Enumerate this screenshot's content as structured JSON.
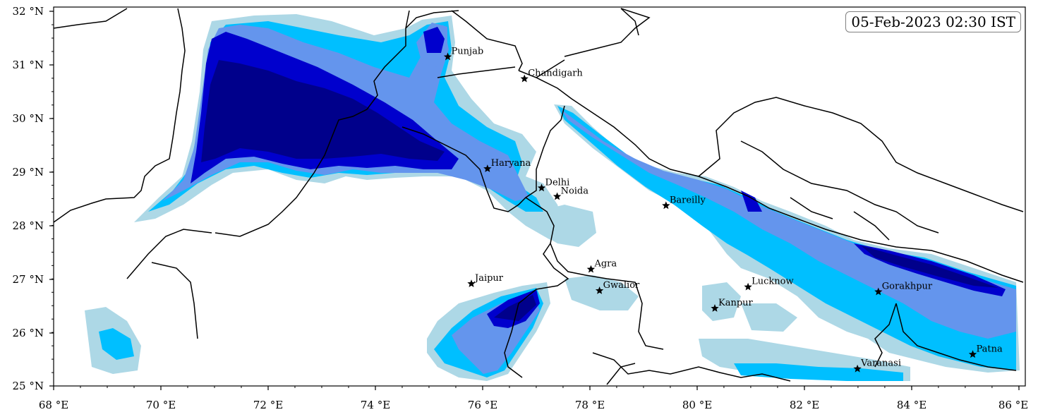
{
  "timestamp": "05-Feb-2023 02:30 IST",
  "lat_ticks": [
    "32 °N",
    "31 °N",
    "30 °N",
    "29 °N",
    "28 °N",
    "27 °N",
    "26 °N",
    "25 °N"
  ],
  "lon_ticks": [
    "68 °E",
    "70 °E",
    "72 °E",
    "74 °E",
    "76 °E",
    "78 °E",
    "80 °E",
    "82 °E",
    "84 °E",
    "86 °E"
  ],
  "cities": [
    {
      "name": "Punjab",
      "lon": 75.35,
      "lat": 31.15
    },
    {
      "name": "Chandigarh",
      "lon": 76.78,
      "lat": 30.74
    },
    {
      "name": "Haryana",
      "lon": 76.09,
      "lat": 29.06
    },
    {
      "name": "Delhi",
      "lon": 77.1,
      "lat": 28.7
    },
    {
      "name": "Noida",
      "lon": 77.39,
      "lat": 28.54
    },
    {
      "name": "Bareilly",
      "lon": 79.42,
      "lat": 28.37
    },
    {
      "name": "Agra",
      "lon": 78.02,
      "lat": 27.18
    },
    {
      "name": "Jaipur",
      "lon": 75.79,
      "lat": 26.91
    },
    {
      "name": "Gwalior",
      "lon": 78.18,
      "lat": 26.78
    },
    {
      "name": "Lucknow",
      "lon": 80.95,
      "lat": 26.85
    },
    {
      "name": "Kanpur",
      "lon": 80.33,
      "lat": 26.45
    },
    {
      "name": "Gorakhpur",
      "lon": 83.38,
      "lat": 26.76
    },
    {
      "name": "Patna",
      "lon": 85.14,
      "lat": 25.59
    },
    {
      "name": "Varanasi",
      "lon": 82.99,
      "lat": 25.32
    }
  ],
  "colors": {
    "level1": "#add8e6",
    "level2": "#00bfff",
    "level3": "#6495ed",
    "level4": "#0000cd",
    "level5": "#00008b",
    "border": "#000000"
  }
}
